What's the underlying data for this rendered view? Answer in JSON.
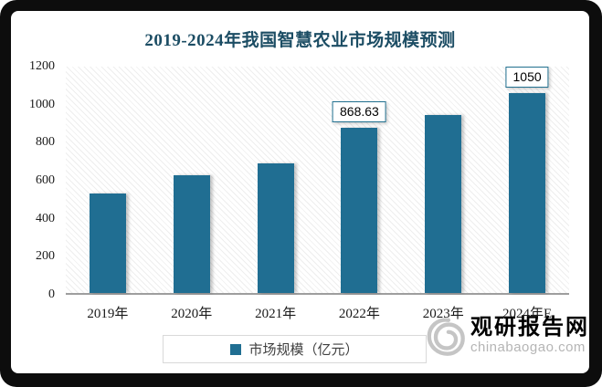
{
  "title": {
    "text": "2019-2024年我国智慧农业市场规模预测",
    "color": "#1C4D64"
  },
  "chart_data": {
    "type": "bar",
    "title": "2019-2024年我国智慧农业市场规模预测",
    "categories": [
      "2019年",
      "2020年",
      "2021年",
      "2022年",
      "2023年",
      "2024年E"
    ],
    "series": [
      {
        "name": "市场规模（亿元）",
        "values": [
          525,
          618,
          683,
          868.63,
          935,
          1050
        ]
      }
    ],
    "bar_labels": [
      null,
      null,
      null,
      "868.63",
      null,
      "1050"
    ],
    "xlabel": "",
    "ylabel": "",
    "ylim": [
      0,
      1200
    ],
    "yticks": [
      0,
      200,
      400,
      600,
      800,
      1000,
      1200
    ],
    "grid": false,
    "legend_position": "bottom",
    "bar_color": "#206E92",
    "plot_background": "diagonal-hatch"
  },
  "legend": {
    "label": "市场规模（亿元）"
  },
  "watermark": {
    "logo": "spiral-icon",
    "site_name": "观研报告网",
    "site_url": "chinabaogao.com",
    "name_color": "#8F8F8F"
  }
}
